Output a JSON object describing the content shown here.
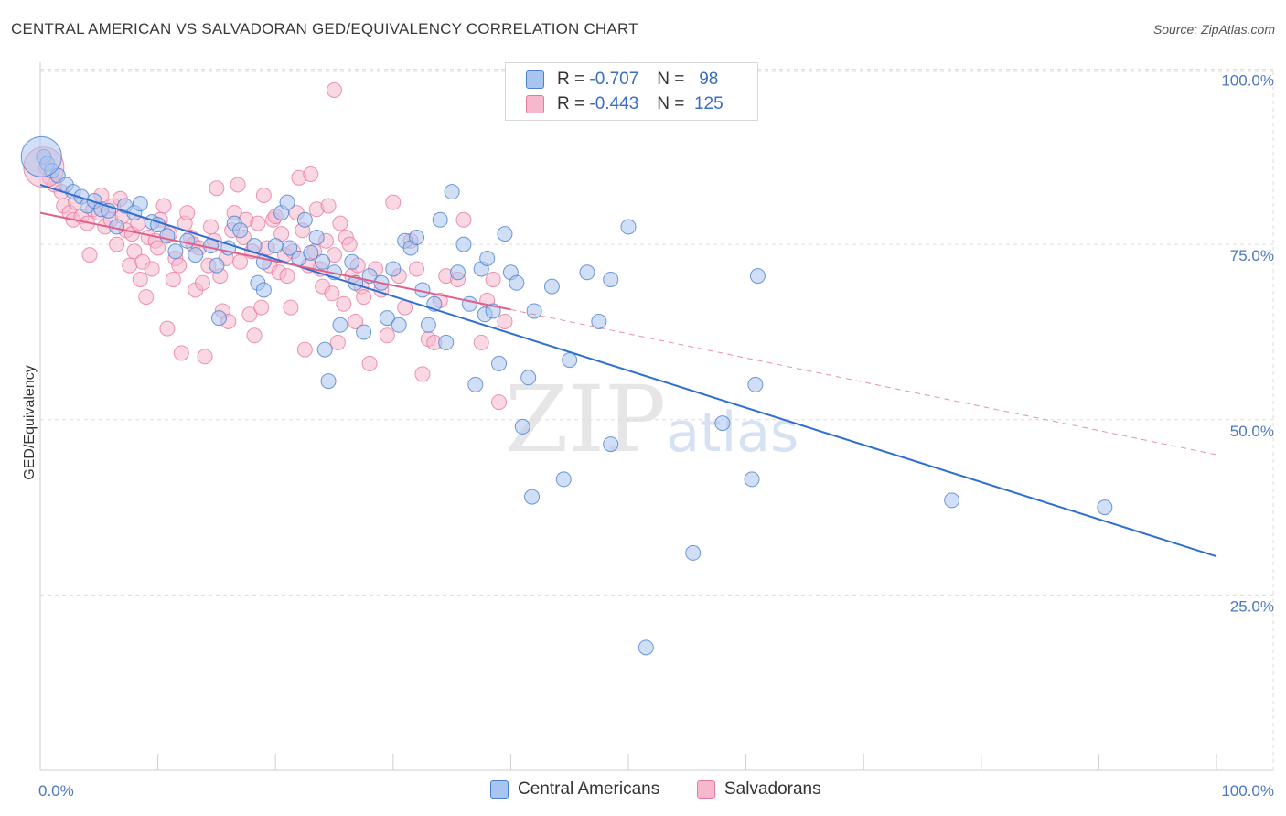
{
  "header": {
    "title": "CENTRAL AMERICAN VS SALVADORAN GED/EQUIVALENCY CORRELATION CHART",
    "source": "Source: ZipAtlas.com"
  },
  "legend_top": {
    "rows": [
      {
        "r_label": "R =",
        "r_value": "-0.707",
        "n_label": "N =",
        "n_value": "98"
      },
      {
        "r_label": "R =",
        "r_value": "-0.443",
        "n_label": "N =",
        "n_value": "125"
      }
    ]
  },
  "watermark": {
    "zip": "ZIP",
    "atlas": "atlas"
  },
  "colors": {
    "blue_fill": "#a9c4ee",
    "blue_stroke": "#4a7fd0",
    "blue_line": "#2f6fcf",
    "pink_fill": "#f6b8cc",
    "pink_stroke": "#e8799e",
    "pink_line": "#e0608a",
    "grid": "#dcdcdc",
    "tick_text": "#4a78c4"
  },
  "chart_data": {
    "type": "scatter",
    "title": "CENTRAL AMERICAN VS SALVADORAN GED/EQUIVALENCY CORRELATION CHART",
    "xlabel": "",
    "ylabel": "GED/Equivalency",
    "xlim": [
      0,
      100
    ],
    "ylim": [
      0,
      103
    ],
    "x_tick_labels": [
      {
        "value": 0,
        "label": "0.0%"
      },
      {
        "value": 100,
        "label": "100.0%"
      }
    ],
    "y_tick_labels": [
      {
        "value": 25,
        "label": "25.0%"
      },
      {
        "value": 50,
        "label": "50.0%"
      },
      {
        "value": 75,
        "label": "75.0%"
      },
      {
        "value": 100,
        "label": "100.0%"
      }
    ],
    "series": [
      {
        "name": "Central Americans",
        "color": "#a9c4ee",
        "r": -0.707,
        "n": 98,
        "trend": {
          "x0": 0,
          "y0": 83.5,
          "x1": 100,
          "y1": 30.5,
          "solid_to": 100
        },
        "points": [
          [
            0.3,
            87.5
          ],
          [
            0.6,
            86.5
          ],
          [
            1.0,
            85.5
          ],
          [
            1.5,
            84.8
          ],
          [
            2.2,
            83.5
          ],
          [
            2.8,
            82.5
          ],
          [
            3.5,
            81.8
          ],
          [
            4.0,
            80.5
          ],
          [
            4.6,
            81.2
          ],
          [
            5.2,
            80.0
          ],
          [
            5.8,
            79.8
          ],
          [
            6.5,
            77.5
          ],
          [
            7.2,
            80.5
          ],
          [
            8.0,
            79.5
          ],
          [
            8.5,
            80.8
          ],
          [
            9.5,
            78.2
          ],
          [
            10.0,
            77.8
          ],
          [
            10.8,
            76.2
          ],
          [
            11.5,
            74.0
          ],
          [
            12.5,
            75.5
          ],
          [
            13.2,
            73.5
          ],
          [
            14.5,
            74.8
          ],
          [
            15.0,
            72.0
          ],
          [
            15.2,
            64.5
          ],
          [
            16.0,
            74.5
          ],
          [
            16.5,
            78.0
          ],
          [
            17.0,
            77.0
          ],
          [
            18.2,
            74.8
          ],
          [
            18.5,
            69.5
          ],
          [
            19.0,
            72.5
          ],
          [
            19.0,
            68.5
          ],
          [
            20.0,
            74.8
          ],
          [
            20.5,
            79.5
          ],
          [
            21.0,
            81.0
          ],
          [
            21.2,
            74.5
          ],
          [
            22.0,
            73.0
          ],
          [
            22.5,
            78.5
          ],
          [
            23.0,
            73.8
          ],
          [
            23.5,
            76.0
          ],
          [
            24.0,
            72.5
          ],
          [
            24.2,
            60.0
          ],
          [
            24.5,
            55.5
          ],
          [
            25.0,
            71.0
          ],
          [
            25.5,
            63.5
          ],
          [
            26.5,
            72.5
          ],
          [
            26.8,
            69.5
          ],
          [
            27.5,
            62.5
          ],
          [
            28.0,
            70.5
          ],
          [
            29.0,
            69.5
          ],
          [
            29.5,
            64.5
          ],
          [
            30.0,
            71.5
          ],
          [
            30.5,
            63.5
          ],
          [
            31.0,
            75.5
          ],
          [
            31.5,
            74.5
          ],
          [
            32.0,
            76.0
          ],
          [
            32.5,
            68.5
          ],
          [
            33.0,
            63.5
          ],
          [
            33.5,
            66.5
          ],
          [
            34.0,
            78.5
          ],
          [
            34.5,
            61.0
          ],
          [
            35.0,
            82.5
          ],
          [
            35.5,
            71.0
          ],
          [
            36.0,
            75.0
          ],
          [
            36.5,
            66.5
          ],
          [
            37.0,
            55.0
          ],
          [
            37.5,
            71.5
          ],
          [
            37.8,
            65.0
          ],
          [
            38.0,
            73.0
          ],
          [
            38.5,
            65.5
          ],
          [
            39.0,
            58.0
          ],
          [
            39.5,
            76.5
          ],
          [
            40.0,
            71.0
          ],
          [
            40.5,
            69.5
          ],
          [
            41.0,
            49.0
          ],
          [
            41.5,
            56.0
          ],
          [
            41.8,
            39.0
          ],
          [
            42.0,
            65.5
          ],
          [
            43.5,
            69.0
          ],
          [
            44.5,
            41.5
          ],
          [
            45.0,
            58.5
          ],
          [
            46.5,
            71.0
          ],
          [
            47.5,
            64.0
          ],
          [
            48.5,
            70.0
          ],
          [
            48.5,
            46.5
          ],
          [
            50.0,
            77.5
          ],
          [
            51.5,
            17.5
          ],
          [
            55.5,
            31.0
          ],
          [
            58.0,
            49.5
          ],
          [
            60.5,
            41.5
          ],
          [
            60.8,
            55.0
          ],
          [
            61.0,
            70.5
          ],
          [
            77.5,
            38.5
          ],
          [
            90.5,
            37.5
          ]
        ],
        "big_points": [
          [
            0.1,
            87.5
          ]
        ]
      },
      {
        "name": "Salvadorans",
        "color": "#f6b8cc",
        "r": -0.443,
        "n": 125,
        "trend": {
          "x0": 0,
          "y0": 79.5,
          "x1": 100,
          "y1": 45.0,
          "solid_to": 40
        },
        "points": [
          [
            0.5,
            86.0
          ],
          [
            0.8,
            84.5
          ],
          [
            1.2,
            83.5
          ],
          [
            1.8,
            82.5
          ],
          [
            2.0,
            80.5
          ],
          [
            2.5,
            79.5
          ],
          [
            2.8,
            78.5
          ],
          [
            3.0,
            81.0
          ],
          [
            3.5,
            79.0
          ],
          [
            4.0,
            78.0
          ],
          [
            4.2,
            73.5
          ],
          [
            4.5,
            80.0
          ],
          [
            5.0,
            79.5
          ],
          [
            5.2,
            82.0
          ],
          [
            5.5,
            77.5
          ],
          [
            6.0,
            78.5
          ],
          [
            6.2,
            80.5
          ],
          [
            6.5,
            75.0
          ],
          [
            6.8,
            81.5
          ],
          [
            7.0,
            79.0
          ],
          [
            7.3,
            77.0
          ],
          [
            7.6,
            72.0
          ],
          [
            7.8,
            76.5
          ],
          [
            8.0,
            74.0
          ],
          [
            8.3,
            78.0
          ],
          [
            8.5,
            70.0
          ],
          [
            8.7,
            72.5
          ],
          [
            9.0,
            67.5
          ],
          [
            9.2,
            76.0
          ],
          [
            9.5,
            71.5
          ],
          [
            9.8,
            75.5
          ],
          [
            10.0,
            74.5
          ],
          [
            10.2,
            78.5
          ],
          [
            10.5,
            80.5
          ],
          [
            10.8,
            63.0
          ],
          [
            11.0,
            76.5
          ],
          [
            11.3,
            70.0
          ],
          [
            11.5,
            73.0
          ],
          [
            11.8,
            72.0
          ],
          [
            12.0,
            59.5
          ],
          [
            12.3,
            78.0
          ],
          [
            12.5,
            79.5
          ],
          [
            12.8,
            76.0
          ],
          [
            13.0,
            75.0
          ],
          [
            13.2,
            68.5
          ],
          [
            13.5,
            74.5
          ],
          [
            13.8,
            69.5
          ],
          [
            14.0,
            59.0
          ],
          [
            14.3,
            72.0
          ],
          [
            14.5,
            77.5
          ],
          [
            14.8,
            75.5
          ],
          [
            15.0,
            83.0
          ],
          [
            15.3,
            70.5
          ],
          [
            15.5,
            65.5
          ],
          [
            15.8,
            73.0
          ],
          [
            16.0,
            64.0
          ],
          [
            16.3,
            77.0
          ],
          [
            16.5,
            79.5
          ],
          [
            16.8,
            83.5
          ],
          [
            17.0,
            72.5
          ],
          [
            17.3,
            76.0
          ],
          [
            17.5,
            78.5
          ],
          [
            17.8,
            65.0
          ],
          [
            18.0,
            74.0
          ],
          [
            18.2,
            62.0
          ],
          [
            18.5,
            78.0
          ],
          [
            18.8,
            66.0
          ],
          [
            19.0,
            82.0
          ],
          [
            19.3,
            74.5
          ],
          [
            19.5,
            72.0
          ],
          [
            19.8,
            78.5
          ],
          [
            20.0,
            79.0
          ],
          [
            20.3,
            71.0
          ],
          [
            20.5,
            76.5
          ],
          [
            20.8,
            73.5
          ],
          [
            21.0,
            70.5
          ],
          [
            21.3,
            66.0
          ],
          [
            21.5,
            74.0
          ],
          [
            21.8,
            79.5
          ],
          [
            22.0,
            84.5
          ],
          [
            22.3,
            77.0
          ],
          [
            22.5,
            60.0
          ],
          [
            22.8,
            72.0
          ],
          [
            23.0,
            85.0
          ],
          [
            23.3,
            74.0
          ],
          [
            23.5,
            80.0
          ],
          [
            23.8,
            71.5
          ],
          [
            24.0,
            69.0
          ],
          [
            24.3,
            75.5
          ],
          [
            24.5,
            80.5
          ],
          [
            24.8,
            68.0
          ],
          [
            25.0,
            73.5
          ],
          [
            25.3,
            61.0
          ],
          [
            25.5,
            78.0
          ],
          [
            25.8,
            66.5
          ],
          [
            26.0,
            76.0
          ],
          [
            26.3,
            75.0
          ],
          [
            26.5,
            70.5
          ],
          [
            26.8,
            64.0
          ],
          [
            27.0,
            72.0
          ],
          [
            27.3,
            69.0
          ],
          [
            27.5,
            67.5
          ],
          [
            28.0,
            58.0
          ],
          [
            28.5,
            71.5
          ],
          [
            29.0,
            68.5
          ],
          [
            29.5,
            62.0
          ],
          [
            30.0,
            81.0
          ],
          [
            30.5,
            70.5
          ],
          [
            31.0,
            66.0
          ],
          [
            31.5,
            75.5
          ],
          [
            32.0,
            71.5
          ],
          [
            32.5,
            56.5
          ],
          [
            33.0,
            61.5
          ],
          [
            33.5,
            61.0
          ],
          [
            34.0,
            67.0
          ],
          [
            34.5,
            70.5
          ],
          [
            35.5,
            70.0
          ],
          [
            36.0,
            78.5
          ],
          [
            37.5,
            61.0
          ],
          [
            38.0,
            67.0
          ],
          [
            38.5,
            70.0
          ],
          [
            39.0,
            52.5
          ],
          [
            39.5,
            64.0
          ],
          [
            25.0,
            97.0
          ]
        ],
        "big_points": [
          [
            0.3,
            86.0
          ]
        ]
      }
    ]
  },
  "legend_bottom": {
    "items": [
      {
        "label": "Central Americans"
      },
      {
        "label": "Salvadorans"
      }
    ]
  }
}
